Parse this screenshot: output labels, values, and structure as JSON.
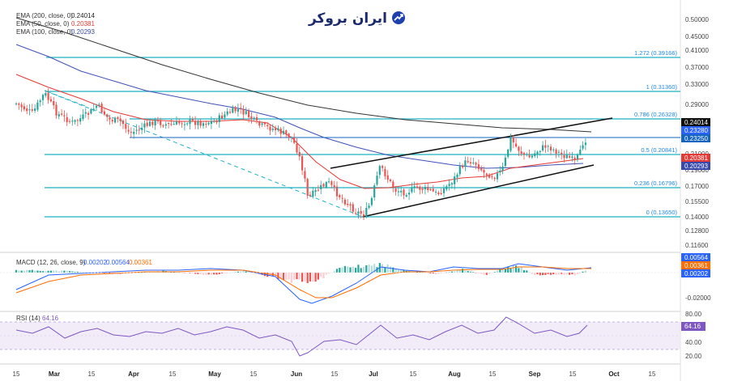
{
  "logo": {
    "text": "ایران بروکر",
    "icon": "chart-arrow-logo-icon"
  },
  "legend": [
    {
      "label": "EMA (200, close, 0)",
      "value": "0.24014",
      "color": "#222222"
    },
    {
      "label": "EMA (50, close, 0)",
      "value": "0.20381",
      "color": "#e53935"
    },
    {
      "label": "EMA (100, close, 0)",
      "value": "0.20293",
      "color": "#3949ab"
    }
  ],
  "price_axis": [
    "0.50000",
    "0.45000",
    "0.41000",
    "0.37000",
    "0.33000",
    "0.29000",
    "0.21000",
    "0.19000",
    "0.17000",
    "0.15500",
    "0.14000",
    "0.12800",
    "0.11600"
  ],
  "price_tags": [
    {
      "text": "0.24014",
      "bg": "#111111"
    },
    {
      "text": "0.23280",
      "bg": "#2962ff"
    },
    {
      "text": "0.23250",
      "bg": "#1565c0"
    },
    {
      "text": "0.20381",
      "bg": "#e53935"
    },
    {
      "text": "0.20293",
      "bg": "#3949ab"
    }
  ],
  "fib_levels": [
    {
      "ratio": "1.272",
      "price": "0.39166",
      "label": "1.272 (0.39166)"
    },
    {
      "ratio": "1",
      "price": "0.31360",
      "label": "1 (0.31360)"
    },
    {
      "ratio": "0.786",
      "price": "0.26328",
      "label": "0.786 (0.26328)"
    },
    {
      "ratio": "0.5",
      "price": "0.20841",
      "label": "0.5 (0.20841)"
    },
    {
      "ratio": "0.236",
      "price": "0.16796",
      "label": "0.236 (0.16796)"
    },
    {
      "ratio": "0",
      "price": "0.13650",
      "label": "0 (0.13650)"
    }
  ],
  "macd": {
    "title": "MACD (12, 26, close, 9)",
    "values": [
      "0.00202",
      "0.00564",
      "0.00361"
    ],
    "value_colors": [
      "#2962ff",
      "#2962ff",
      "#ff6d00"
    ],
    "axis": [
      "-0.02000"
    ],
    "tags": [
      {
        "text": "0.00564",
        "bg": "#2962ff"
      },
      {
        "text": "0.00361",
        "bg": "#ff6d00"
      },
      {
        "text": "0.00202",
        "bg": "#2962ff"
      }
    ]
  },
  "rsi": {
    "title": "RSI (14)",
    "value": "64.16",
    "axis": [
      "80.00",
      "40.00",
      "20.00"
    ],
    "tag": "64.16"
  },
  "x_axis": [
    {
      "label": "15",
      "bold": false
    },
    {
      "label": "Mar",
      "bold": true
    },
    {
      "label": "15",
      "bold": false
    },
    {
      "label": "Apr",
      "bold": true
    },
    {
      "label": "15",
      "bold": false
    },
    {
      "label": "May",
      "bold": true
    },
    {
      "label": "15",
      "bold": false
    },
    {
      "label": "Jun",
      "bold": true
    },
    {
      "label": "15",
      "bold": false
    },
    {
      "label": "Jul",
      "bold": true
    },
    {
      "label": "15",
      "bold": false
    },
    {
      "label": "Aug",
      "bold": true
    },
    {
      "label": "15",
      "bold": false
    },
    {
      "label": "Sep",
      "bold": true
    },
    {
      "label": "15",
      "bold": false
    },
    {
      "label": "Oct",
      "bold": true
    },
    {
      "label": "15",
      "bold": false
    }
  ],
  "chart_data": {
    "type": "candlestick",
    "title": "",
    "y_scale": "log",
    "ylim": [
      0.11,
      0.52
    ],
    "colors": {
      "up": "#26a69a",
      "down": "#ef5350",
      "fib": "#1fb2c4",
      "channel": "#111111",
      "ema200": "#222222",
      "ema50": "#e53935",
      "ema100": "#3949ab"
    },
    "close_path": [
      [
        "Feb-15",
        0.295
      ],
      [
        "Mar-01",
        0.265
      ],
      [
        "Mar-15",
        0.255
      ],
      [
        "Apr-01",
        0.245
      ],
      [
        "Apr-15",
        0.248
      ],
      [
        "May-01",
        0.25
      ],
      [
        "May-10",
        0.272
      ],
      [
        "May-20",
        0.258
      ],
      [
        "Jun-01",
        0.24
      ],
      [
        "Jun-05",
        0.17
      ],
      [
        "Jun-10",
        0.16
      ],
      [
        "Jun-20",
        0.146
      ],
      [
        "Jun-25",
        0.138
      ],
      [
        "Jul-02",
        0.196
      ],
      [
        "Jul-10",
        0.165
      ],
      [
        "Jul-20",
        0.168
      ],
      [
        "Aug-01",
        0.166
      ],
      [
        "Aug-10",
        0.205
      ],
      [
        "Aug-20",
        0.19
      ],
      [
        "Aug-25",
        0.232
      ],
      [
        "Sep-01",
        0.212
      ],
      [
        "Sep-08",
        0.222
      ],
      [
        "Sep-15",
        0.206
      ],
      [
        "Sep-19",
        0.232
      ]
    ]
  }
}
